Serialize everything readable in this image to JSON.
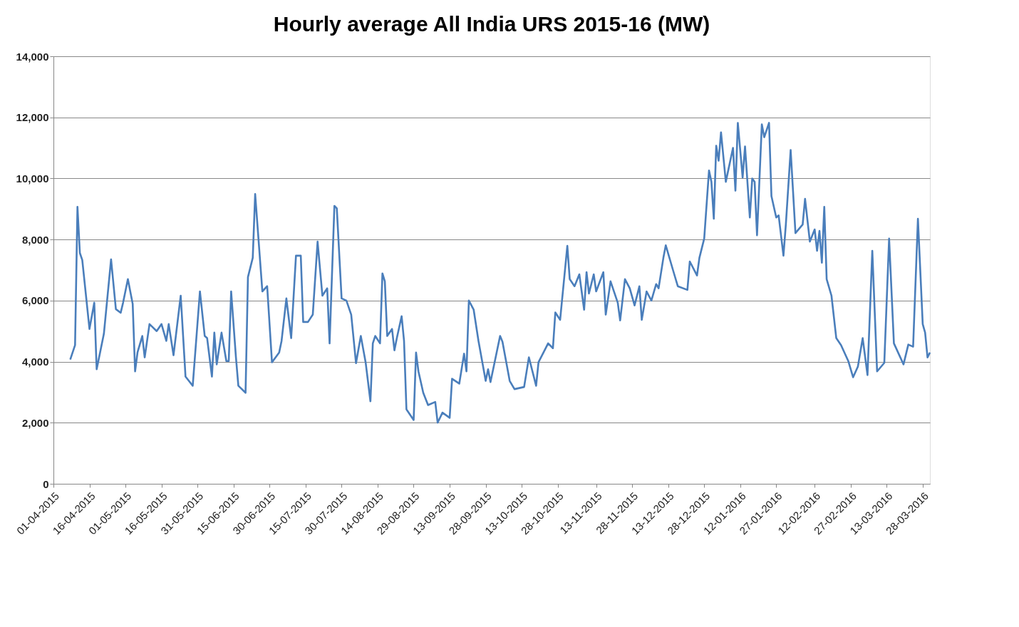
{
  "chart_data": {
    "type": "line",
    "title": "Hourly average All India URS 2015-16 (MW)",
    "x": [
      "2015-04-08",
      "2015-04-10",
      "2015-04-11",
      "2015-04-12",
      "2015-04-13",
      "2015-04-16",
      "2015-04-18",
      "2015-04-19",
      "2015-04-22",
      "2015-04-25",
      "2015-04-27",
      "2015-04-29",
      "2015-04-30",
      "2015-05-02",
      "2015-05-04",
      "2015-05-05",
      "2015-05-06",
      "2015-05-08",
      "2015-05-09",
      "2015-05-11",
      "2015-05-14",
      "2015-05-16",
      "2015-05-18",
      "2015-05-19",
      "2015-05-21",
      "2015-05-24",
      "2015-05-26",
      "2015-05-29",
      "2015-06-01",
      "2015-06-03",
      "2015-06-04",
      "2015-06-06",
      "2015-06-07",
      "2015-06-08",
      "2015-06-10",
      "2015-06-12",
      "2015-06-13",
      "2015-06-14",
      "2015-06-16",
      "2015-06-17",
      "2015-06-20",
      "2015-06-21",
      "2015-06-23",
      "2015-06-24",
      "2015-06-27",
      "2015-06-29",
      "2015-07-01",
      "2015-07-04",
      "2015-07-05",
      "2015-07-07",
      "2015-07-09",
      "2015-07-11",
      "2015-07-13",
      "2015-07-14",
      "2015-07-16",
      "2015-07-18",
      "2015-07-20",
      "2015-07-22",
      "2015-07-24",
      "2015-07-25",
      "2015-07-27",
      "2015-07-28",
      "2015-07-30",
      "2015-08-01",
      "2015-08-03",
      "2015-08-05",
      "2015-08-07",
      "2015-08-09",
      "2015-08-11",
      "2015-08-12",
      "2015-08-13",
      "2015-08-15",
      "2015-08-16",
      "2015-08-17",
      "2015-08-18",
      "2015-08-20",
      "2015-08-21",
      "2015-08-22",
      "2015-08-24",
      "2015-08-25",
      "2015-08-26",
      "2015-08-29",
      "2015-08-30",
      "2015-08-31",
      "2015-09-02",
      "2015-09-04",
      "2015-09-07",
      "2015-09-08",
      "2015-09-10",
      "2015-09-13",
      "2015-09-14",
      "2015-09-17",
      "2015-09-19",
      "2015-09-20",
      "2015-09-21",
      "2015-09-23",
      "2015-09-25",
      "2015-09-28",
      "2015-09-29",
      "2015-09-30",
      "2015-10-04",
      "2015-10-05",
      "2015-10-08",
      "2015-10-10",
      "2015-10-14",
      "2015-10-16",
      "2015-10-19",
      "2015-10-20",
      "2015-10-24",
      "2015-10-26",
      "2015-10-27",
      "2015-10-29",
      "2015-11-01",
      "2015-11-02",
      "2015-11-04",
      "2015-11-06",
      "2015-11-08",
      "2015-11-09",
      "2015-11-10",
      "2015-11-12",
      "2015-11-13",
      "2015-11-16",
      "2015-11-17",
      "2015-11-19",
      "2015-11-22",
      "2015-11-23",
      "2015-11-25",
      "2015-11-27",
      "2015-11-29",
      "2015-12-01",
      "2015-12-02",
      "2015-12-04",
      "2015-12-06",
      "2015-12-08",
      "2015-12-09",
      "2015-12-11",
      "2015-12-12",
      "2015-12-15",
      "2015-12-17",
      "2015-12-21",
      "2015-12-22",
      "2015-12-25",
      "2015-12-26",
      "2015-12-28",
      "2015-12-30",
      "2015-12-31",
      "2016-01-01",
      "2016-01-02",
      "2016-01-03",
      "2016-01-04",
      "2016-01-06",
      "2016-01-09",
      "2016-01-10",
      "2016-01-11",
      "2016-01-13",
      "2016-01-14",
      "2016-01-16",
      "2016-01-17",
      "2016-01-18",
      "2016-01-19",
      "2016-01-21",
      "2016-01-22",
      "2016-01-24",
      "2016-01-25",
      "2016-01-27",
      "2016-01-28",
      "2016-01-30",
      "2016-01-31",
      "2016-02-02",
      "2016-02-04",
      "2016-02-07",
      "2016-02-08",
      "2016-02-10",
      "2016-02-12",
      "2016-02-13",
      "2016-02-14",
      "2016-02-15",
      "2016-02-16",
      "2016-02-17",
      "2016-02-19",
      "2016-02-21",
      "2016-02-23",
      "2016-02-26",
      "2016-02-28",
      "2016-03-01",
      "2016-03-03",
      "2016-03-05",
      "2016-03-07",
      "2016-03-09",
      "2016-03-12",
      "2016-03-14",
      "2016-03-16",
      "2016-03-20",
      "2016-03-22",
      "2016-03-24",
      "2016-03-26",
      "2016-03-28",
      "2016-03-29",
      "2016-03-30",
      "2016-03-31"
    ],
    "series": [
      {
        "color": "#4a7ebb",
        "values": [
          4070,
          4540,
          9070,
          7560,
          7330,
          5070,
          5930,
          3750,
          4910,
          7350,
          5720,
          5600,
          5930,
          6700,
          5890,
          3680,
          4300,
          4840,
          4140,
          5230,
          5000,
          5230,
          4680,
          5230,
          4210,
          6160,
          3510,
          3210,
          6300,
          4840,
          4770,
          3510,
          4950,
          3910,
          4950,
          4020,
          4020,
          6300,
          4140,
          3210,
          2980,
          6770,
          7400,
          9490,
          6300,
          6470,
          3980,
          4300,
          4680,
          6070,
          4770,
          7470,
          7470,
          5300,
          5300,
          5540,
          7930,
          6160,
          6400,
          4600,
          9100,
          9020,
          6070,
          6000,
          5540,
          3950,
          4840,
          3980,
          2700,
          4600,
          4840,
          4600,
          6890,
          6630,
          4840,
          5070,
          4370,
          4770,
          5490,
          4680,
          2440,
          2090,
          4300,
          3680,
          2980,
          2580,
          2680,
          2000,
          2330,
          2160,
          3440,
          3280,
          4260,
          3680,
          6000,
          5700,
          4680,
          3370,
          3750,
          3330,
          4840,
          4650,
          3370,
          3100,
          3170,
          4140,
          3210,
          3980,
          4600,
          4440,
          5610,
          5370,
          7790,
          6700,
          6470,
          6860,
          5700,
          6930,
          6230,
          6860,
          6300,
          6930,
          5540,
          6630,
          5930,
          5350,
          6700,
          6400,
          5840,
          6470,
          5370,
          6300,
          6000,
          6540,
          6400,
          7400,
          7810,
          7000,
          6470,
          6350,
          7280,
          6820,
          7400,
          8030,
          10260,
          9890,
          8680,
          11070,
          10580,
          11510,
          9890,
          11000,
          9600,
          11820,
          10030,
          11050,
          8720,
          10000,
          9890,
          8140,
          11770,
          11350,
          11820,
          9420,
          8720,
          8790,
          7470,
          8490,
          10930,
          8210,
          8490,
          9330,
          7930,
          8330,
          7630,
          8280,
          7240,
          9070,
          6700,
          6160,
          4770,
          4540,
          4020,
          3490,
          3840,
          4770,
          3560,
          7630,
          3680,
          3960,
          8030,
          4600,
          3910,
          4560,
          4490,
          8680,
          5230,
          4950,
          4140,
          4300
        ]
      }
    ],
    "xlim": [
      "2015-04-01",
      "2016-03-31"
    ],
    "xticks": [
      {
        "value": "2015-04-01",
        "label": "01-04-2015"
      },
      {
        "value": "2015-04-16",
        "label": "16-04-2015"
      },
      {
        "value": "2015-05-01",
        "label": "01-05-2015"
      },
      {
        "value": "2015-05-16",
        "label": "16-05-2015"
      },
      {
        "value": "2015-05-31",
        "label": "31-05-2015"
      },
      {
        "value": "2015-06-15",
        "label": "15-06-2015"
      },
      {
        "value": "2015-06-30",
        "label": "30-06-2015"
      },
      {
        "value": "2015-07-15",
        "label": "15-07-2015"
      },
      {
        "value": "2015-07-30",
        "label": "30-07-2015"
      },
      {
        "value": "2015-08-14",
        "label": "14-08-2015"
      },
      {
        "value": "2015-08-29",
        "label": "29-08-2015"
      },
      {
        "value": "2015-09-13",
        "label": "13-09-2015"
      },
      {
        "value": "2015-09-28",
        "label": "28-09-2015"
      },
      {
        "value": "2015-10-13",
        "label": "13-10-2015"
      },
      {
        "value": "2015-10-28",
        "label": "28-10-2015"
      },
      {
        "value": "2015-11-13",
        "label": "13-11-2015"
      },
      {
        "value": "2015-11-28",
        "label": "28-11-2015"
      },
      {
        "value": "2015-12-13",
        "label": "13-12-2015"
      },
      {
        "value": "2015-12-28",
        "label": "28-12-2015"
      },
      {
        "value": "2016-01-12",
        "label": "12-01-2016"
      },
      {
        "value": "2016-01-27",
        "label": "27-01-2016"
      },
      {
        "value": "2016-02-12",
        "label": "12-02-2016"
      },
      {
        "value": "2016-02-27",
        "label": "27-02-2016"
      },
      {
        "value": "2016-03-13",
        "label": "13-03-2016"
      },
      {
        "value": "2016-03-28",
        "label": "28-03-2016"
      }
    ],
    "ylim": [
      0,
      14000
    ],
    "yticks": [
      {
        "value": 0,
        "label": "0"
      },
      {
        "value": 2000,
        "label": "2,000"
      },
      {
        "value": 4000,
        "label": "4,000"
      },
      {
        "value": 6000,
        "label": "6,000"
      },
      {
        "value": 8000,
        "label": "8,000"
      },
      {
        "value": 10000,
        "label": "10,000"
      },
      {
        "value": 12000,
        "label": "12,000"
      },
      {
        "value": 14000,
        "label": "14,000"
      }
    ],
    "grid": "y",
    "marker": "none",
    "line_style": "solid",
    "legend": false
  }
}
